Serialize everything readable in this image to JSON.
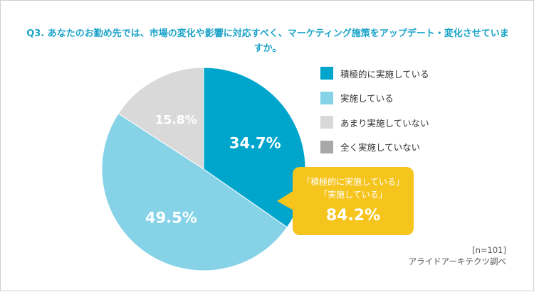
{
  "title": "Q3. あなたのお勤め先では、市場の変化や影響に対応すべく、マーケティング施策をアップデート・変化させていますか。",
  "chart_data": {
    "type": "pie",
    "title": "Q3. あなたのお勤め先では、市場の変化や影響に対応すべく、マーケティング施策をアップデート・変化させていますか。",
    "unit": "%",
    "slices": [
      {
        "label": "積極的に実施している",
        "value": 34.7,
        "display": "34.7%",
        "color": "#00a5cc"
      },
      {
        "label": "実施している",
        "value": 49.5,
        "display": "49.5%",
        "color": "#86d3e8"
      },
      {
        "label": "あまり実施していない",
        "value": 15.8,
        "display": "15.8%",
        "color": "#d9d9d9"
      },
      {
        "label": "全く実施していない",
        "value": 0,
        "display": "",
        "color": "#a8a8a8"
      }
    ],
    "legend_position": "right"
  },
  "callout": {
    "line1": "「積極的に実施している」",
    "line2": "「実施している」",
    "value": "84.2%",
    "color": "#f5c41d"
  },
  "footer": {
    "sample": "[n=101]",
    "source": "アライドアーキテクツ調べ"
  }
}
